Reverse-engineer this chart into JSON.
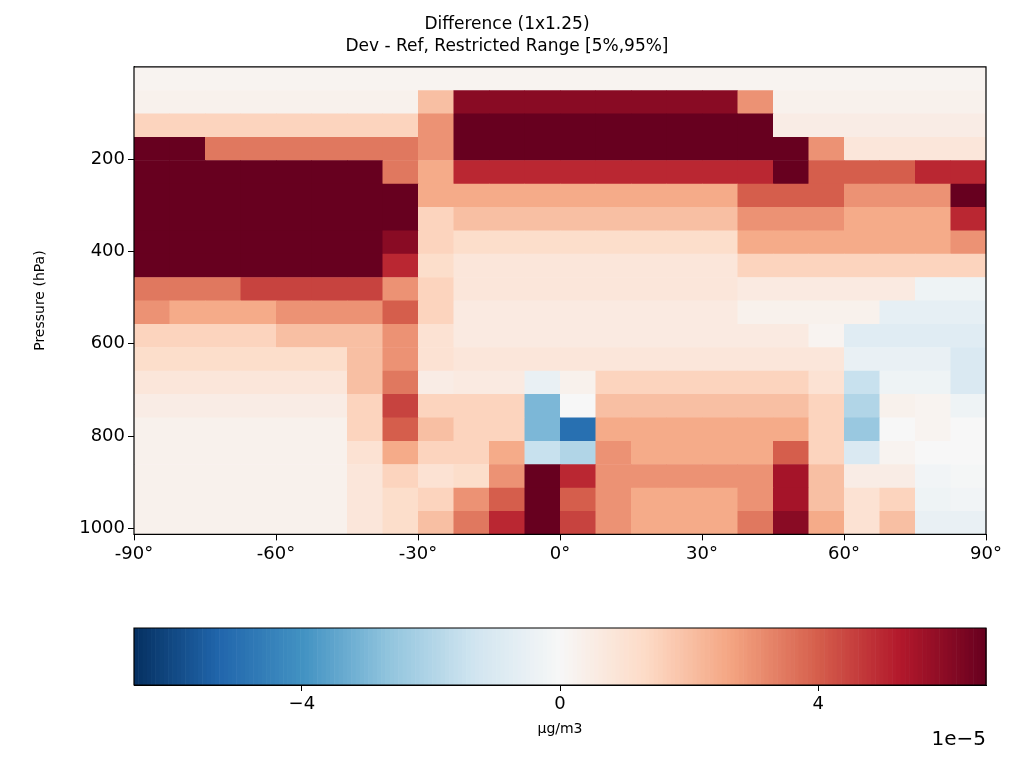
{
  "chart_data": {
    "type": "heatmap",
    "title": "Difference (1x1.25)",
    "subtitle": "Dev - Ref, Restricted Range [5%,95%]",
    "ylabel": "Pressure (hPa)",
    "clabel": "µg/m3",
    "annotations": [
      "1e−5"
    ],
    "x": [
      -86.25,
      -78.75,
      -71.25,
      -63.75,
      -56.25,
      -48.75,
      -41.25,
      -33.75,
      -26.25,
      -18.75,
      -11.25,
      -3.75,
      3.75,
      11.25,
      18.75,
      26.25,
      33.75,
      41.25,
      48.75,
      56.25,
      63.75,
      71.25,
      78.75,
      86.25
    ],
    "xlim": [
      -90,
      90
    ],
    "xticks": [
      {
        "value": -90,
        "label": "-90°"
      },
      {
        "value": -60,
        "label": "-60°"
      },
      {
        "value": -30,
        "label": "-30°"
      },
      {
        "value": 0,
        "label": "0°"
      },
      {
        "value": 30,
        "label": "30°"
      },
      {
        "value": 60,
        "label": "60°"
      },
      {
        "value": 90,
        "label": "90°"
      }
    ],
    "ylim": [
      1013,
      0
    ],
    "yticks": [
      200,
      400,
      600,
      800,
      1000
    ],
    "clim": [
      -6.6,
      6.6
    ],
    "cticks": [
      {
        "value": -4,
        "label": "−4"
      },
      0,
      4
    ],
    "cells": [
      [
        0.2,
        0.2,
        0.2,
        0.2,
        0.2,
        0.2,
        0.2,
        0.2,
        0.2,
        0.2,
        0.2,
        0.2,
        0.2,
        0.2,
        0.2,
        0.2,
        0.2,
        0.2,
        0.2,
        0.2,
        0.2,
        0.2,
        0.2,
        0.2
      ],
      [
        0.3,
        0.3,
        0.3,
        0.3,
        0.3,
        0.3,
        0.3,
        0.3,
        2,
        6,
        6,
        6,
        6,
        6,
        6,
        6,
        6,
        3,
        0.3,
        0.3,
        0.3,
        0.3,
        0.3,
        0.3
      ],
      [
        1.5,
        1.5,
        1.5,
        1.5,
        1.5,
        1.5,
        1.5,
        1.5,
        3,
        6.6,
        6.6,
        6.6,
        6.6,
        6.6,
        6.6,
        6.6,
        6.6,
        6.6,
        0.5,
        0.5,
        0.5,
        0.5,
        0.5,
        0.5
      ],
      [
        6.6,
        6.6,
        3.5,
        3.5,
        3.5,
        3.5,
        3.5,
        3.5,
        3,
        6.6,
        6.6,
        6.6,
        6.6,
        6.6,
        6.6,
        6.6,
        6.6,
        6.6,
        6.6,
        3,
        0.8,
        0.8,
        0.8,
        0.8
      ],
      [
        6.6,
        6.6,
        6.6,
        6.6,
        6.6,
        6.6,
        6.6,
        3.5,
        2.5,
        5,
        5,
        5,
        5,
        5,
        5,
        5,
        5,
        5,
        6.6,
        4,
        4,
        4,
        5,
        5
      ],
      [
        6.6,
        6.6,
        6.6,
        6.6,
        6.6,
        6.6,
        6.6,
        6.6,
        2.5,
        2.5,
        2.5,
        2.5,
        2.5,
        2.5,
        2.5,
        2.5,
        2.5,
        4,
        4,
        4,
        3,
        3,
        3,
        6.6
      ],
      [
        6.6,
        6.6,
        6.6,
        6.6,
        6.6,
        6.6,
        6.6,
        6.6,
        1.5,
        2,
        2,
        2,
        2,
        2,
        2,
        2,
        2,
        3,
        3,
        3,
        2.5,
        2.5,
        2.5,
        5
      ],
      [
        6.6,
        6.6,
        6.6,
        6.6,
        6.6,
        6.6,
        6.6,
        6,
        1.5,
        1.2,
        1.2,
        1.2,
        1.2,
        1.2,
        1.2,
        1.2,
        1.2,
        2.5,
        2.5,
        2.5,
        2.5,
        2.5,
        2.5,
        3
      ],
      [
        6.6,
        6.6,
        6.6,
        6.6,
        6.6,
        6.6,
        6.6,
        5,
        1.2,
        0.8,
        0.8,
        0.8,
        0.8,
        0.8,
        0.8,
        0.8,
        0.8,
        1.5,
        1.5,
        1.5,
        1.5,
        1.5,
        1.5,
        1.5
      ],
      [
        3.5,
        3.5,
        3.5,
        4.5,
        4.5,
        4.5,
        4.5,
        3,
        1.5,
        0.8,
        0.8,
        0.8,
        0.8,
        0.8,
        0.8,
        0.8,
        0.8,
        0.6,
        0.6,
        0.6,
        0.6,
        0.6,
        -0.3,
        -0.3
      ],
      [
        3,
        2.5,
        2.5,
        2.5,
        3,
        3,
        3,
        4,
        1.5,
        0.6,
        0.6,
        0.6,
        0.6,
        0.6,
        0.6,
        0.6,
        0.6,
        0.3,
        0.3,
        0.3,
        0.3,
        -0.6,
        -0.6,
        -0.6
      ],
      [
        1.5,
        1.5,
        1.5,
        1.5,
        2,
        2,
        2,
        3,
        1,
        0.6,
        0.6,
        0.6,
        0.6,
        0.6,
        0.6,
        0.6,
        0.6,
        0.6,
        0.6,
        0.2,
        -0.8,
        -0.8,
        -0.8,
        -0.8
      ],
      [
        1.2,
        1.2,
        1.2,
        1.2,
        1.2,
        1.2,
        2,
        3,
        1,
        0.8,
        0.8,
        0.8,
        0.8,
        0.8,
        0.8,
        0.8,
        0.8,
        0.8,
        0.8,
        0.8,
        -0.5,
        -0.5,
        -0.5,
        -1
      ],
      [
        0.8,
        0.8,
        0.8,
        0.8,
        0.8,
        0.8,
        2,
        3.5,
        0.5,
        0.6,
        0.6,
        -0.5,
        0.3,
        1.5,
        1.5,
        1.5,
        1.5,
        1.5,
        1.5,
        1,
        -1.5,
        -0.3,
        -0.3,
        -1
      ],
      [
        0.5,
        0.5,
        0.5,
        0.5,
        0.5,
        0.5,
        1.5,
        4.5,
        1.5,
        1.5,
        1.5,
        -3,
        0,
        2,
        2,
        2,
        2,
        2,
        2,
        1.5,
        -2,
        0.3,
        0.2,
        -0.3
      ],
      [
        0.3,
        0.3,
        0.3,
        0.3,
        0.3,
        0.3,
        1.5,
        4,
        2,
        1.5,
        1.5,
        -3,
        -5,
        2.5,
        2.5,
        2.5,
        2.5,
        2.5,
        2.5,
        1.5,
        -2.5,
        0,
        0.2,
        0
      ],
      [
        0.3,
        0.3,
        0.3,
        0.3,
        0.3,
        0.3,
        1,
        2.5,
        1.5,
        1.5,
        2.5,
        -1.5,
        -2,
        3,
        2.5,
        2.5,
        2.5,
        2.5,
        4,
        1.5,
        -1,
        0.2,
        0,
        0
      ],
      [
        0.3,
        0.3,
        0.3,
        0.3,
        0.3,
        0.3,
        0.8,
        1.5,
        1,
        1.2,
        3,
        6.6,
        5,
        3,
        3,
        3,
        3,
        3,
        5.5,
        2,
        0.5,
        0.5,
        -0.2,
        -0.1
      ],
      [
        0.3,
        0.3,
        0.3,
        0.3,
        0.3,
        0.3,
        0.8,
        1.2,
        1.5,
        3,
        4,
        6.6,
        4,
        3,
        2.5,
        2.5,
        2.5,
        3,
        5.5,
        2,
        1,
        1.5,
        -0.3,
        -0.2
      ],
      [
        0.3,
        0.3,
        0.3,
        0.3,
        0.3,
        0.3,
        0.8,
        1.2,
        2,
        3.5,
        5,
        6.6,
        4.5,
        3,
        2.5,
        2.5,
        2.5,
        3.5,
        6,
        2.5,
        1,
        2,
        -0.5,
        -0.5
      ]
    ]
  }
}
